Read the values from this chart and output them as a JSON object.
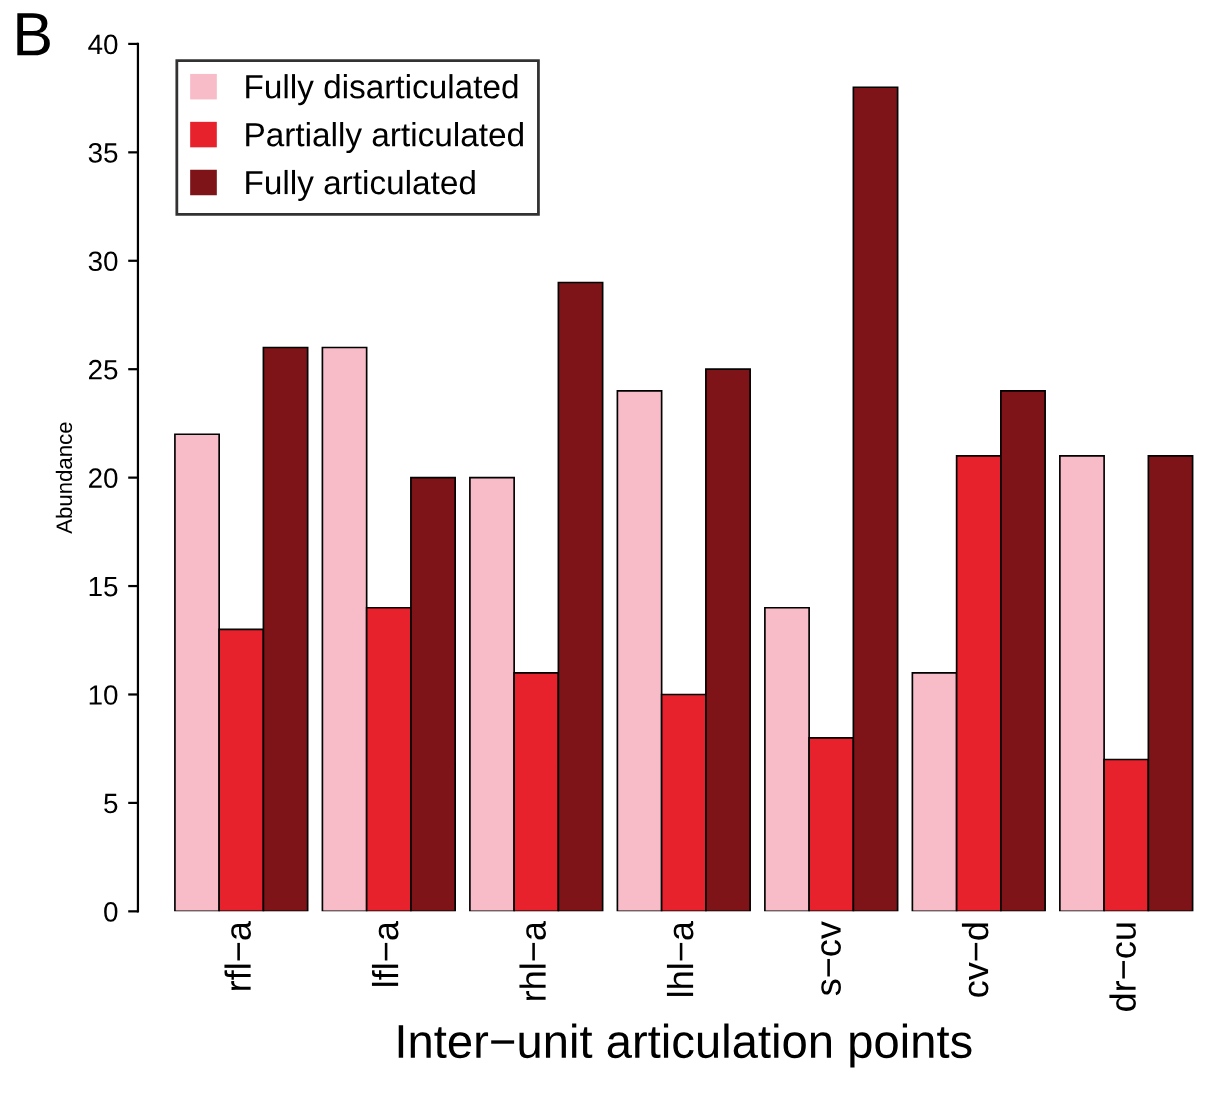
{
  "chart_data": {
    "type": "bar",
    "xlabel": "Inter−unit articulation points",
    "ylabel": "Abundance",
    "annotations": [
      "B"
    ],
    "categories": [
      "rfl−a",
      "lfl−a",
      "rhl−a",
      "lhl−a",
      "s−cv",
      "cv−d",
      "dr−cu"
    ],
    "series": [
      {
        "name": "Fully disarticulated",
        "color": "#f7bcc8",
        "values": [
          22,
          26,
          20,
          24,
          14,
          11,
          21
        ]
      },
      {
        "name": "Partially articulated",
        "color": "#e8222c",
        "values": [
          13,
          14,
          11,
          10,
          8,
          21,
          7
        ]
      },
      {
        "name": "Fully articulated",
        "color": "#7e1418",
        "values": [
          26,
          20,
          29,
          25,
          38,
          24,
          21
        ]
      }
    ],
    "ylim": [
      0,
      40
    ],
    "yticks": [
      0,
      5,
      10,
      15,
      20,
      25,
      30,
      35,
      40
    ],
    "legend": "top left",
    "grid": false
  }
}
